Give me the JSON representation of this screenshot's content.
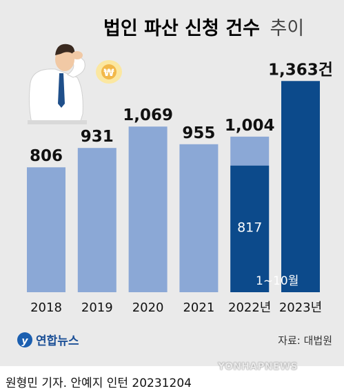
{
  "header": {
    "title_bold": "법인 파산 신청 건수",
    "title_light": "추이"
  },
  "chart_data": {
    "type": "bar",
    "categories": [
      "2018",
      "2019",
      "2020",
      "2021",
      "2022년",
      "2023년"
    ],
    "values": [
      806,
      931,
      1069,
      955,
      1004,
      1363
    ],
    "value_labels": [
      "806",
      "931",
      "1,069",
      "955",
      "1,004",
      "1,363건"
    ],
    "highlight": {
      "category": "2022년",
      "value": 817,
      "label": "817",
      "period_label": "1~10월"
    },
    "colors": {
      "bar": "#8ba8d6",
      "highlight": "#0c4a8b",
      "background": "#eaeaea"
    },
    "ylim": [
      0,
      1450
    ]
  },
  "brand": {
    "logo_text": "연합뉴스"
  },
  "source": "자료: 대법원",
  "credit": "원형민 기자. 안예지 인턴  20231204",
  "watermark": "YONHAPNEWS",
  "illustration": {
    "coin_symbol": "₩"
  }
}
